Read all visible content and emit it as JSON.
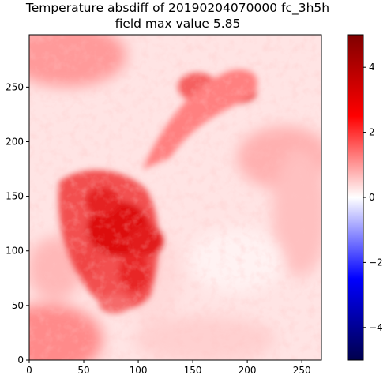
{
  "chart_data": {
    "type": "heatmap",
    "title": "Temperature absdiff of 20190204070000 fc_3h5h",
    "subtitle": "field max value 5.85",
    "xlabel": "",
    "ylabel": "",
    "xlim": [
      0,
      268
    ],
    "ylim": [
      0,
      298
    ],
    "x_ticks": [
      "0",
      "50",
      "100",
      "150",
      "200",
      "250"
    ],
    "y_ticks": [
      "0",
      "50",
      "100",
      "150",
      "200",
      "250"
    ],
    "colorbar": {
      "colormap": "seismic",
      "range": [
        -5.0,
        5.0
      ],
      "ticks": [
        "4",
        "2",
        "0",
        "−2",
        "−4"
      ]
    },
    "field_max": 5.85,
    "grid": false
  }
}
